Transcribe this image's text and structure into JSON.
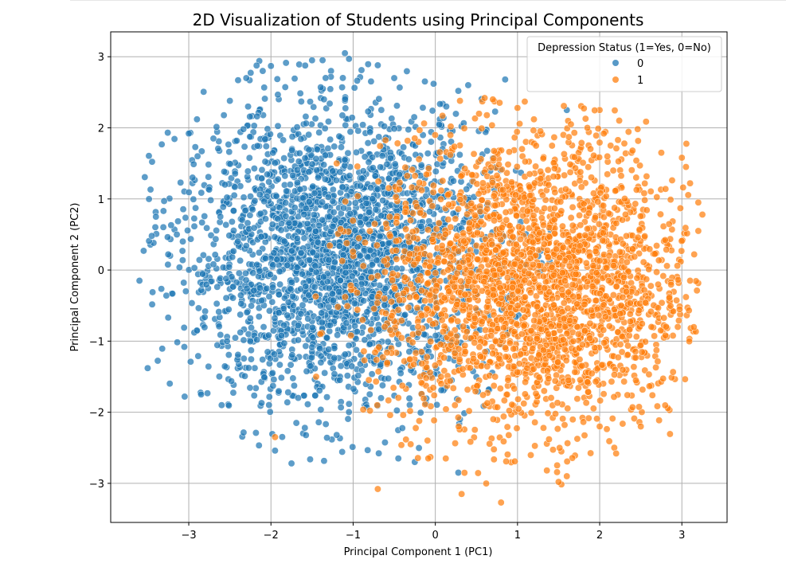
{
  "chart_data": {
    "type": "scatter",
    "title": "2D Visualization of Students using Principal Components",
    "xlabel": "Principal Component 1 (PC1)",
    "ylabel": "Principal Component 2 (PC2)",
    "xlim": [
      -3.95,
      3.55
    ],
    "ylim": [
      -3.55,
      3.35
    ],
    "xticks": [
      -3,
      -2,
      -1,
      0,
      1,
      2,
      3
    ],
    "yticks": [
      -3,
      -2,
      -1,
      0,
      1,
      2,
      3
    ],
    "xtick_labels": [
      "−3",
      "−2",
      "−1",
      "0",
      "1",
      "2",
      "3"
    ],
    "ytick_labels": [
      "−3",
      "−2",
      "−1",
      "0",
      "1",
      "2",
      "3"
    ],
    "grid": true,
    "legend": {
      "title": "Depression Status (1=Yes, 0=No)",
      "placement": "upper right",
      "entries": [
        "0",
        "1"
      ]
    },
    "series": [
      {
        "label": "0",
        "color": "#1f77b4",
        "cluster_center": [
          -1.2,
          0.2
        ],
        "approx_range_x": [
          -3.6,
          1.6
        ],
        "approx_range_y": [
          -2.7,
          3.05
        ],
        "sample_points": [
          [
            -3.6,
            -0.15
          ],
          [
            -3.5,
            -1.38
          ],
          [
            -3.45,
            0.48
          ],
          [
            -3.4,
            0.75
          ],
          [
            -3.3,
            0.97
          ],
          [
            -3.25,
            0.22
          ],
          [
            -3.1,
            1.23
          ],
          [
            -3.05,
            -1.78
          ],
          [
            -3.0,
            1.92
          ],
          [
            -2.9,
            2.12
          ],
          [
            -2.85,
            -1.75
          ],
          [
            -2.7,
            1.85
          ],
          [
            -2.5,
            2.38
          ],
          [
            -2.4,
            2.67
          ],
          [
            -2.3,
            2.7
          ],
          [
            -2.1,
            2.8
          ],
          [
            -2.0,
            2.87
          ],
          [
            -1.95,
            -2.54
          ],
          [
            -1.75,
            -2.72
          ],
          [
            -1.5,
            2.95
          ],
          [
            -1.1,
            3.05
          ],
          [
            -1.05,
            2.97
          ],
          [
            -0.7,
            2.88
          ],
          [
            -0.5,
            2.7
          ],
          [
            0.28,
            2.52
          ],
          [
            0.4,
            2.6
          ],
          [
            0.85,
            2.68
          ],
          [
            1.6,
            2.25
          ],
          [
            0.2,
            -1.55
          ],
          [
            0.3,
            -2.1
          ],
          [
            0.28,
            -2.85
          ],
          [
            -0.45,
            -2.65
          ],
          [
            -0.25,
            -2.7
          ],
          [
            -1.2,
            -2.32
          ],
          [
            -2.6,
            -1.9
          ],
          [
            -2.9,
            -0.85
          ]
        ]
      },
      {
        "label": "1",
        "color": "#ff7f0e",
        "cluster_center": [
          1.2,
          -0.2
        ],
        "approx_range_x": [
          -2.0,
          3.2
        ],
        "approx_range_y": [
          -3.3,
          2.4
        ],
        "sample_points": [
          [
            -1.95,
            -2.35
          ],
          [
            -1.45,
            -1.5
          ],
          [
            -0.7,
            -3.08
          ],
          [
            -0.3,
            -2.45
          ],
          [
            0.32,
            -3.15
          ],
          [
            0.8,
            -3.27
          ],
          [
            1.5,
            -2.98
          ],
          [
            1.6,
            -2.9
          ],
          [
            2.0,
            -2.2
          ],
          [
            2.2,
            -2.58
          ],
          [
            2.4,
            -1.93
          ],
          [
            2.5,
            -2.2
          ],
          [
            2.8,
            -0.92
          ],
          [
            2.95,
            -0.8
          ],
          [
            3.05,
            -0.38
          ],
          [
            3.1,
            -0.15
          ],
          [
            3.15,
            0.22
          ],
          [
            3.2,
            0.55
          ],
          [
            3.25,
            0.78
          ],
          [
            3.2,
            0.95
          ],
          [
            3.1,
            1.22
          ],
          [
            3.05,
            1.45
          ],
          [
            3.0,
            1.58
          ],
          [
            2.75,
            1.65
          ],
          [
            2.4,
            1.68
          ],
          [
            2.3,
            1.78
          ],
          [
            2.05,
            1.92
          ],
          [
            1.85,
            2.0
          ],
          [
            1.65,
            2.05
          ],
          [
            1.2,
            2.12
          ],
          [
            1.0,
            2.28
          ],
          [
            0.7,
            2.4
          ],
          [
            0.6,
            2.42
          ],
          [
            0.3,
            2.38
          ],
          [
            -0.3,
            -0.2
          ],
          [
            -0.6,
            0.65
          ],
          [
            -1.2,
            1.5
          ],
          [
            -1.4,
            -0.9
          ]
        ]
      }
    ]
  }
}
